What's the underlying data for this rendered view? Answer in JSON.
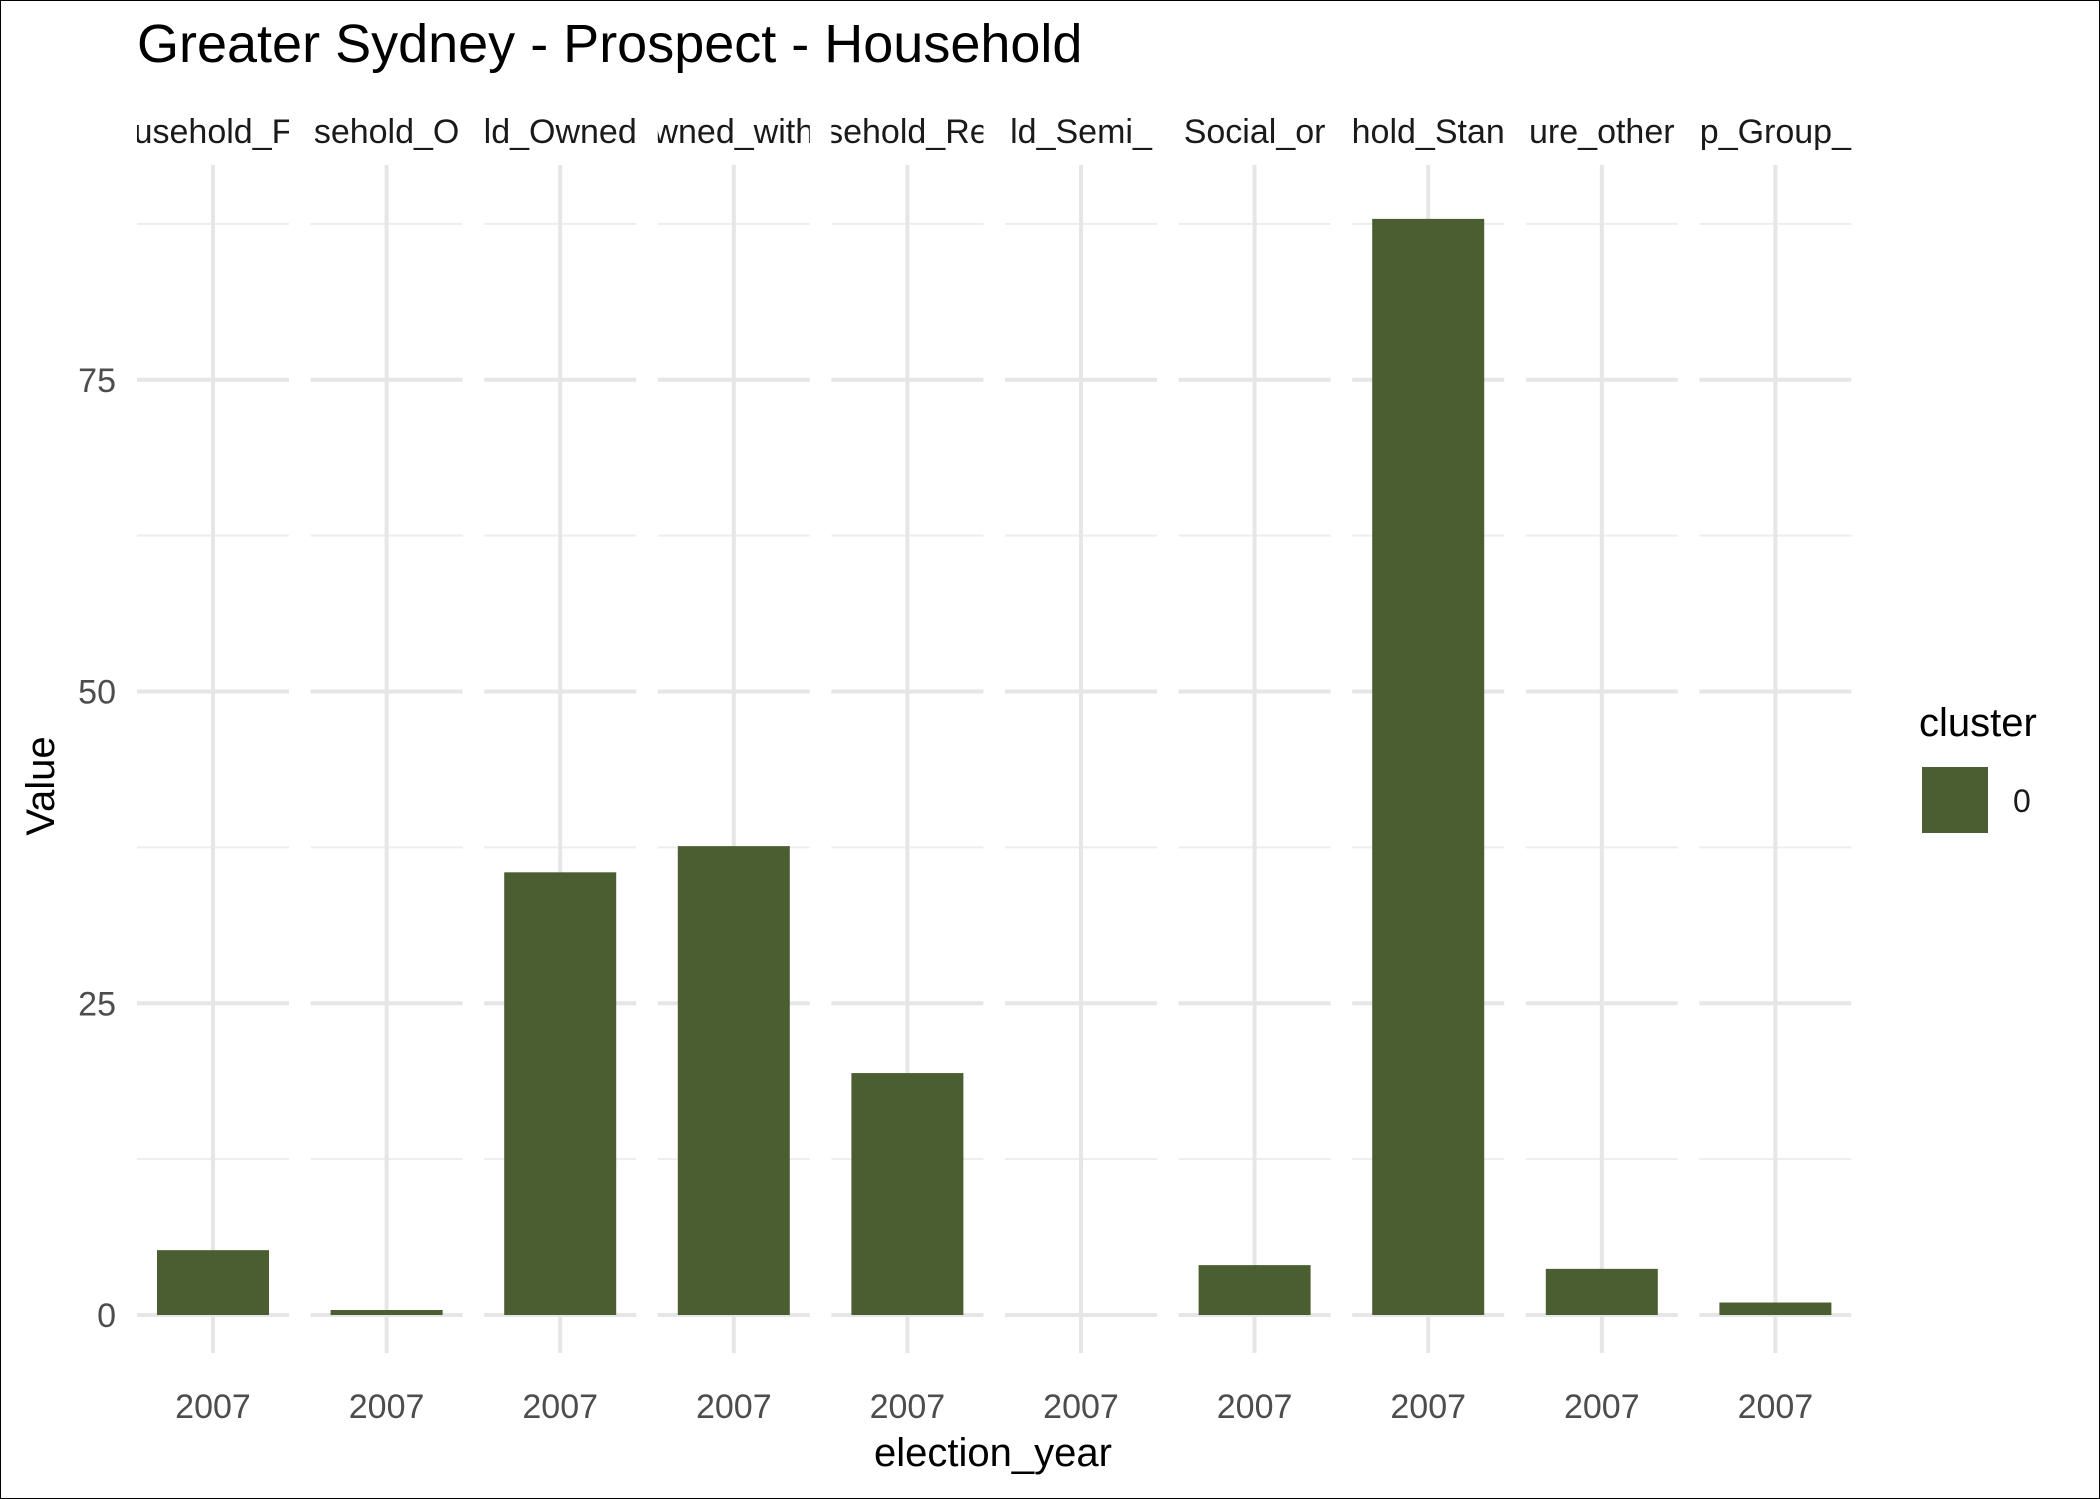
{
  "chart_data": {
    "type": "bar",
    "title": "Greater Sydney - Prospect - Household",
    "xlabel": "election_year",
    "ylabel": "Value",
    "ylim": [
      0,
      90
    ],
    "y_ticks": [
      0,
      25,
      50,
      75
    ],
    "grid": true,
    "bar_color": "#4a5e31",
    "legend": {
      "title": "cluster",
      "placement": "right",
      "entries": [
        {
          "label": "0",
          "color": "#4a5e31"
        }
      ]
    },
    "facets": [
      {
        "strip": "usehold_F",
        "x": "2007",
        "value": 5.2
      },
      {
        "strip": "sehold_O",
        "x": "2007",
        "value": 0.4
      },
      {
        "strip": "ld_Owned",
        "x": "2007",
        "value": 35.5
      },
      {
        "strip": "wned_with",
        "x": "2007",
        "value": 37.6
      },
      {
        "strip": "sehold_Re",
        "x": "2007",
        "value": 19.4
      },
      {
        "strip": "ld_Semi_",
        "x": "2007",
        "value": 0
      },
      {
        "strip": "Social_or",
        "x": "2007",
        "value": 4.0
      },
      {
        "strip": "hold_Stan",
        "x": "2007",
        "value": 87.9
      },
      {
        "strip": "ure_other",
        "x": "2007",
        "value": 3.7
      },
      {
        "strip": "p_Group_",
        "x": "2007",
        "value": 1.0
      }
    ]
  }
}
